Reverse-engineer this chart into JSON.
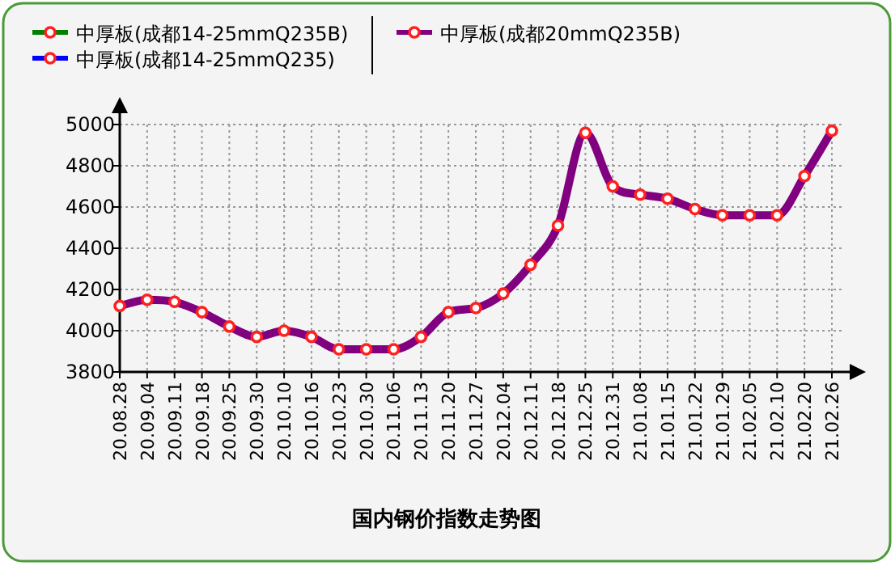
{
  "chart_data": {
    "type": "line",
    "title": "国内钢价指数走势图",
    "categories": [
      "20.08.28",
      "20.09.04",
      "20.09.11",
      "20.09.18",
      "20.09.25",
      "20.09.30",
      "20.10.10",
      "20.10.16",
      "20.10.23",
      "20.10.30",
      "20.11.06",
      "20.11.13",
      "20.11.20",
      "20.11.27",
      "20.12.04",
      "20.12.11",
      "20.12.18",
      "20.12.25",
      "20.12.31",
      "21.01.08",
      "21.01.15",
      "21.01.22",
      "21.01.29",
      "21.02.05",
      "21.02.10",
      "21.02.20",
      "21.02.26"
    ],
    "series": [
      {
        "name": "中厚板(成都14-25mmQ235B)",
        "color": "#008000",
        "values": [
          null,
          null,
          null,
          null,
          null,
          null,
          null,
          null,
          null,
          null,
          null,
          null,
          null,
          null,
          null,
          null,
          null,
          null,
          null,
          null,
          null,
          null,
          null,
          null,
          null,
          null,
          null
        ]
      },
      {
        "name": "中厚板(成都14-25mmQ235)",
        "color": "#0000ff",
        "values": [
          null,
          null,
          null,
          null,
          null,
          null,
          null,
          null,
          null,
          null,
          null,
          null,
          null,
          null,
          null,
          null,
          null,
          null,
          null,
          null,
          null,
          null,
          null,
          null,
          null,
          null,
          null
        ]
      },
      {
        "name": "中厚板(成都20mmQ235B)",
        "color": "#800080",
        "values": [
          4120,
          4150,
          4140,
          4090,
          4020,
          3970,
          4000,
          3970,
          3910,
          3910,
          3910,
          3970,
          4090,
          4110,
          4180,
          4320,
          4510,
          4960,
          4700,
          4660,
          4640,
          4590,
          4560,
          4560,
          4560,
          4750,
          4970
        ]
      }
    ],
    "ylim": [
      3800,
      5000
    ],
    "yticks": [
      3800,
      4000,
      4200,
      4400,
      4600,
      4800,
      5000
    ],
    "grid": true,
    "legend": "top",
    "marker": "circle",
    "line_style": "solid"
  }
}
